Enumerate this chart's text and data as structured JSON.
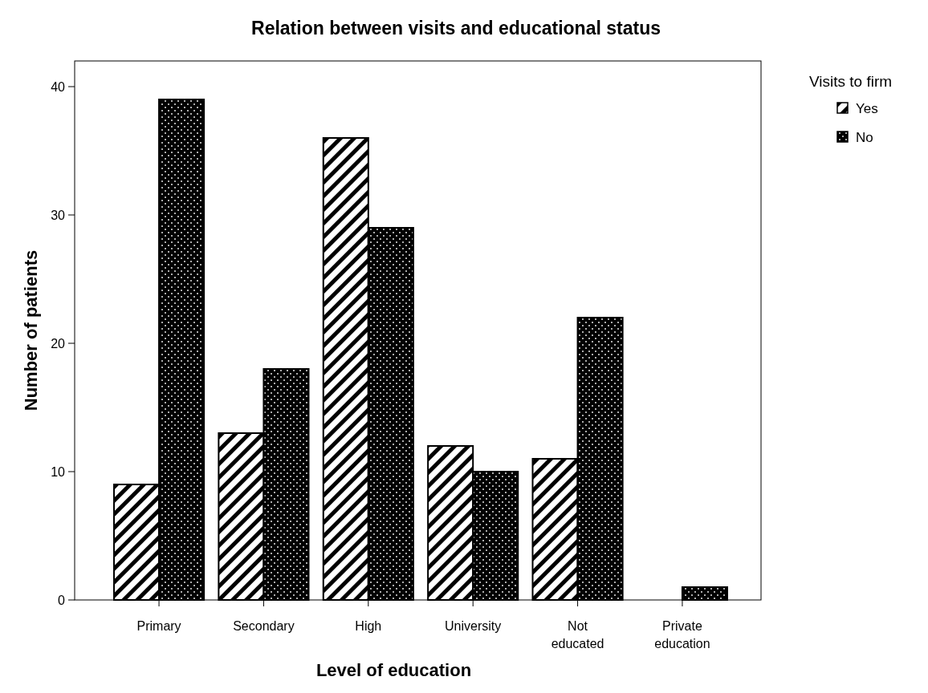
{
  "chart_data": {
    "type": "bar",
    "title": "Relation between visits and educational status",
    "xlabel": "Level of education",
    "ylabel": "Number of patients",
    "legend_title": "Visits to firm",
    "categories": [
      "Primary",
      "Secondary",
      "High",
      "University",
      "Not educated",
      "Private education"
    ],
    "series": [
      {
        "name": "Yes",
        "color": "#000000",
        "values": [
          9,
          13,
          36,
          12,
          11,
          null
        ]
      },
      {
        "name": "No",
        "color": "#000000",
        "values": [
          39,
          18,
          29,
          10,
          22,
          1
        ]
      }
    ],
    "ylim": [
      0,
      42
    ],
    "yticks": [
      0,
      10,
      20,
      30,
      40
    ],
    "grid": false,
    "legend": "top right"
  }
}
